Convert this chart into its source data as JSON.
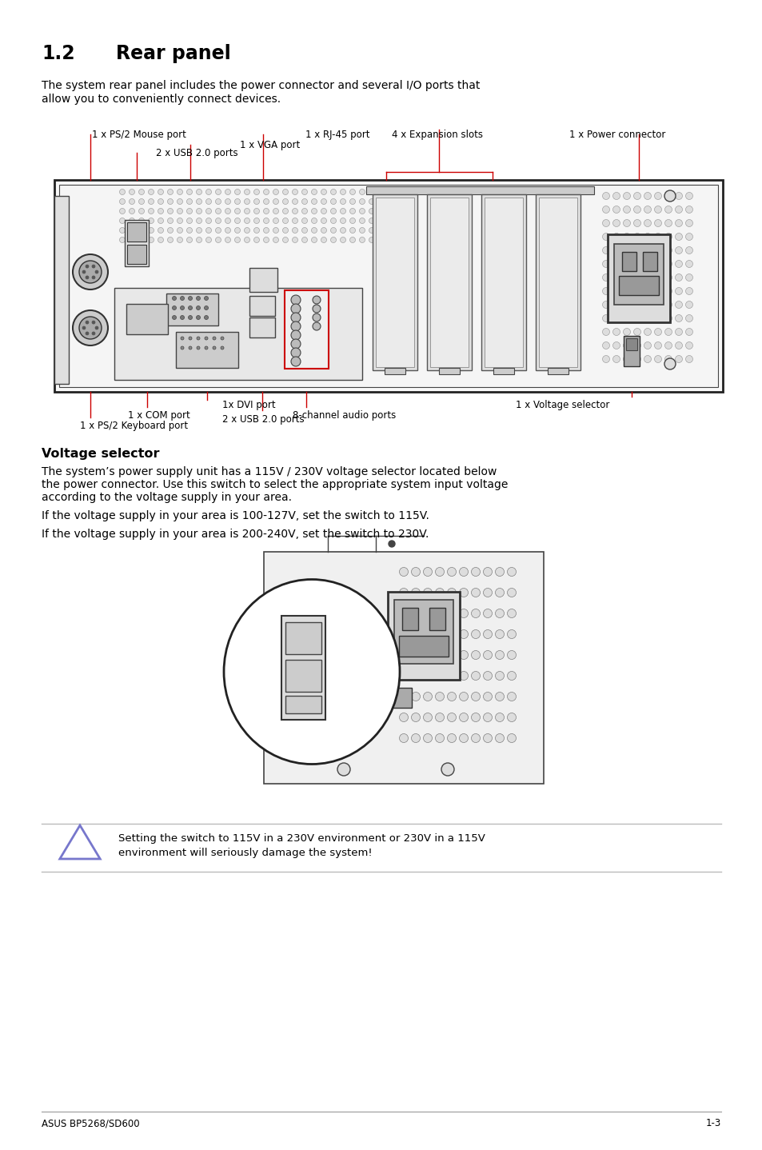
{
  "bg_color": "#ffffff",
  "title_num": "1.2",
  "title_text": "Rear panel",
  "intro_text": "The system rear panel includes the power connector and several I/O ports that\nallow you to conveniently connect devices.",
  "section2_title": "Voltage selector",
  "section2_body1": "The system’s power supply unit has a 115V / 230V voltage selector located below",
  "section2_body2": "the power connector. Use this switch to select the appropriate system input voltage",
  "section2_body3": "according to the voltage supply in your area.",
  "para1": "If the voltage supply in your area is 100-127V, set the switch to 115V.",
  "para2": "If the voltage supply in your area is 200-240V, set the switch to 230V.",
  "warning_text1": "Setting the switch to 115V in a 230V environment or 230V in a 115V",
  "warning_text2": "environment will seriously damage the system!",
  "footer_left": "ASUS BP5268/SD600",
  "footer_right": "1-3",
  "red": "#cc0000",
  "gray": "#888888"
}
